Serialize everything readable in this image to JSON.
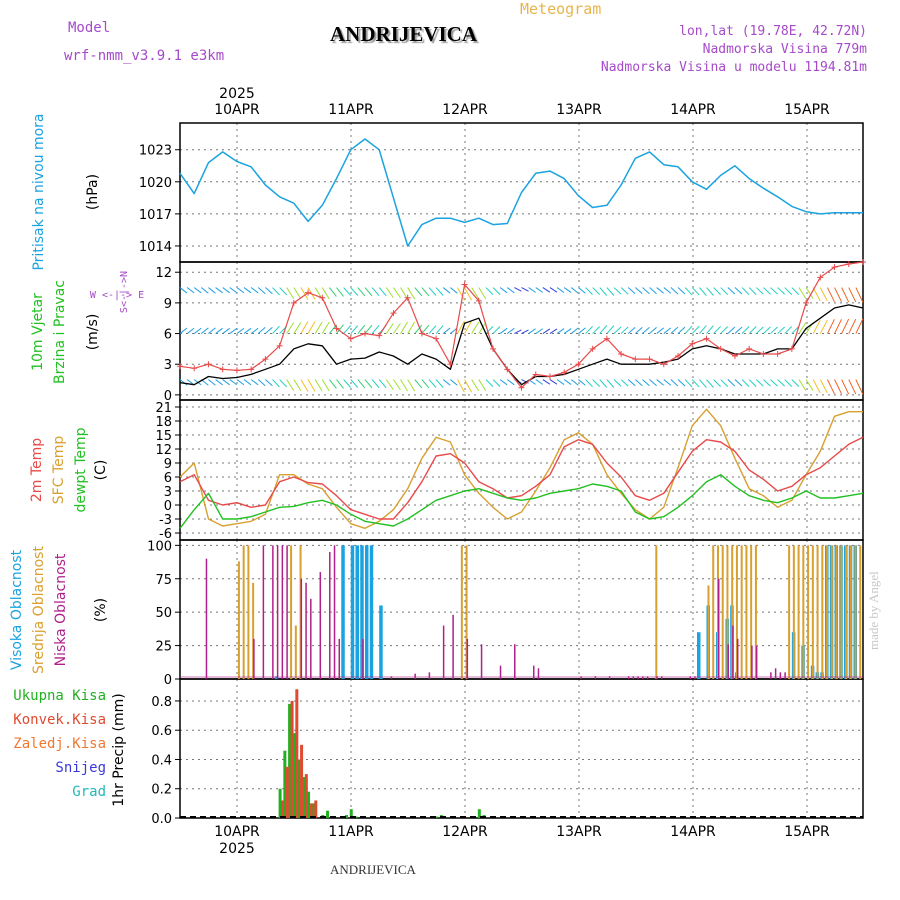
{
  "header": {
    "title": "ANDRIJEVICA",
    "meteogram_label": "Meteogram",
    "model_label": "Model",
    "model_name": "wrf-nmm_v3.9.1 e3km",
    "lonlat": "lon,lat (19.78E, 42.72N)",
    "altitude": "Nadmorska Visina 779m",
    "model_altitude": "Nadmorska Visina u modelu 1194.81m",
    "bottom_name": "ANDRIJEVICA",
    "made_by": "made by Angel"
  },
  "colors": {
    "pressure": "#1aa3e0",
    "wind_speed": "#e84a4a",
    "wind_mean": "#000000",
    "temp_2m": "#e84a4a",
    "temp_sfc": "#d8a030",
    "dewpt": "#22c022",
    "cloud_high": "#1aa3e0",
    "cloud_mid": "#d8a030",
    "cloud_low": "#b0208a",
    "precip_total": "#22b022",
    "precip_conv": "#e04a30",
    "precip_frozen": "#f07830",
    "snow": "#3a3ad8",
    "grad": "#22b8b8"
  },
  "chart_data": [
    {
      "type": "line",
      "id": "pressure",
      "ylabel_lines": [
        "Pritisak na nivou mora",
        "(hPa)"
      ],
      "yticks": [
        1014,
        1017,
        1020,
        1023
      ],
      "ylim": [
        1012.5,
        1025.5
      ],
      "xlim": [
        0,
        144
      ],
      "x_date_ticks": [
        "10APR",
        "11APR",
        "12APR",
        "13APR",
        "14APR",
        "15APR"
      ],
      "year_label": "2025",
      "x": [
        0,
        3,
        6,
        9,
        12,
        15,
        18,
        21,
        24,
        27,
        30,
        33,
        36,
        39,
        42,
        45,
        48,
        51,
        54,
        57,
        60,
        63,
        66,
        69,
        72,
        75,
        78,
        81,
        84,
        87,
        90,
        93,
        96,
        99,
        102,
        105,
        108,
        111,
        114,
        117,
        120,
        123,
        126,
        129,
        132,
        135,
        138,
        141,
        144
      ],
      "values": [
        1020.8,
        1018.9,
        1021.8,
        1022.8,
        1021.9,
        1021.4,
        1019.7,
        1018.6,
        1018.0,
        1016.3,
        1017.8,
        1020.3,
        1023.0,
        1024.0,
        1023.0,
        1018.5,
        1014.0,
        1016.0,
        1016.6,
        1016.6,
        1016.2,
        1016.6,
        1016.0,
        1016.1,
        1019.0,
        1020.8,
        1021.0,
        1020.3,
        1018.7,
        1017.6,
        1017.8,
        1019.7,
        1022.2,
        1022.8,
        1021.6,
        1021.4,
        1020.0,
        1019.3,
        1020.6,
        1021.5,
        1020.3,
        1019.4,
        1018.6,
        1017.7,
        1017.2,
        1017.0,
        1017.1,
        1017.1,
        1017.1
      ]
    },
    {
      "type": "line",
      "id": "wind",
      "ylabel_lines": [
        "10m Vjetar",
        "Brzina i Pravac",
        "(m/s)"
      ],
      "direction_legend": "W <-|-> E  S<-|->N",
      "yticks": [
        0,
        3,
        6,
        9,
        12
      ],
      "ylim": [
        -0.5,
        13
      ],
      "xlim": [
        0,
        144
      ],
      "series": [
        {
          "name": "wind speed (gust)",
          "x": [
            0,
            3,
            6,
            9,
            12,
            15,
            18,
            21,
            24,
            27,
            30,
            33,
            36,
            39,
            42,
            45,
            48,
            51,
            54,
            57,
            60,
            63,
            66,
            69,
            72,
            75,
            78,
            81,
            84,
            87,
            90,
            93,
            96,
            99,
            102,
            105,
            108,
            111,
            114,
            117,
            120,
            123,
            126,
            129,
            132,
            135,
            138,
            141,
            144
          ],
          "values": [
            2.8,
            2.6,
            3.0,
            2.5,
            2.4,
            2.5,
            3.5,
            4.8,
            9.0,
            10.0,
            9.5,
            6.5,
            5.5,
            6.0,
            5.8,
            8.0,
            9.5,
            6.0,
            5.5,
            3.0,
            10.8,
            9.2,
            4.5,
            2.5,
            0.7,
            2.0,
            1.8,
            2.2,
            3.0,
            4.5,
            5.5,
            4.0,
            3.5,
            3.5,
            3.0,
            3.8,
            5.0,
            5.5,
            4.5,
            3.8,
            4.5,
            4.0,
            4.0,
            4.5,
            9.0,
            11.5,
            12.5,
            12.8,
            13.0
          ]
        },
        {
          "name": "wind speed (mean)",
          "x": [
            0,
            3,
            6,
            9,
            12,
            15,
            18,
            21,
            24,
            27,
            30,
            33,
            36,
            39,
            42,
            45,
            48,
            51,
            54,
            57,
            60,
            63,
            66,
            69,
            72,
            75,
            78,
            81,
            84,
            87,
            90,
            93,
            96,
            99,
            102,
            105,
            108,
            111,
            114,
            117,
            120,
            123,
            126,
            129,
            132,
            135,
            138,
            141,
            144
          ],
          "values": [
            1.2,
            1.0,
            1.8,
            1.6,
            1.7,
            2.0,
            2.5,
            3.0,
            4.5,
            5.0,
            4.8,
            3.0,
            3.5,
            3.6,
            4.2,
            3.8,
            3.0,
            4.0,
            3.5,
            2.5,
            7.0,
            7.5,
            4.5,
            2.5,
            1.0,
            1.8,
            1.8,
            2.0,
            2.5,
            3.0,
            3.5,
            3.0,
            3.0,
            3.0,
            3.2,
            3.5,
            4.5,
            4.8,
            4.5,
            4.0,
            4.0,
            4.0,
            4.5,
            4.5,
            6.5,
            7.5,
            8.5,
            8.8,
            8.5
          ]
        }
      ]
    },
    {
      "type": "line",
      "id": "temperature",
      "ylabel_lines": [
        "2m Temp",
        "SFC Temp",
        "dewpt Temp",
        "(C)"
      ],
      "yticks": [
        -6,
        -3,
        0,
        3,
        6,
        9,
        12,
        15,
        18,
        21
      ],
      "ylim": [
        -7.5,
        22.5
      ],
      "xlim": [
        0,
        144
      ],
      "series": [
        {
          "name": "2m Temp",
          "x": [
            0,
            3,
            6,
            9,
            12,
            15,
            18,
            21,
            24,
            27,
            30,
            33,
            36,
            39,
            42,
            45,
            48,
            51,
            54,
            57,
            60,
            63,
            66,
            69,
            72,
            75,
            78,
            81,
            84,
            87,
            90,
            93,
            96,
            99,
            102,
            105,
            108,
            111,
            114,
            117,
            120,
            123,
            126,
            129,
            132,
            135,
            138,
            141,
            144
          ],
          "values": [
            5.0,
            6.5,
            1.0,
            0.0,
            0.5,
            -0.5,
            0.0,
            5.0,
            6.0,
            4.8,
            4.5,
            2.0,
            -1.0,
            -2.0,
            -3.0,
            -3.0,
            0.5,
            5.0,
            10.5,
            11.0,
            9.0,
            5.0,
            3.5,
            1.5,
            2.0,
            4.0,
            6.5,
            12.5,
            14.0,
            13.0,
            9.0,
            6.0,
            2.0,
            1.0,
            2.5,
            7.0,
            11.5,
            14.0,
            13.5,
            11.5,
            7.5,
            5.5,
            3.0,
            4.0,
            6.5,
            8.0,
            10.5,
            13.0,
            14.5
          ]
        },
        {
          "name": "SFC Temp",
          "x": [
            0,
            3,
            6,
            9,
            12,
            15,
            18,
            21,
            24,
            27,
            30,
            33,
            36,
            39,
            42,
            45,
            48,
            51,
            54,
            57,
            60,
            63,
            66,
            69,
            72,
            75,
            78,
            81,
            84,
            87,
            90,
            93,
            96,
            99,
            102,
            105,
            108,
            111,
            114,
            117,
            120,
            123,
            126,
            129,
            132,
            135,
            138,
            141,
            144
          ],
          "values": [
            6.0,
            9.0,
            -3.0,
            -4.5,
            -4.0,
            -3.5,
            -2.0,
            6.5,
            6.5,
            4.5,
            3.5,
            -0.5,
            -4.0,
            -5.0,
            -3.5,
            -1.0,
            3.5,
            10.0,
            14.5,
            13.5,
            6.5,
            2.5,
            -0.5,
            -3.0,
            -1.5,
            3.0,
            8.0,
            14.0,
            15.5,
            13.0,
            6.5,
            2.5,
            -1.0,
            -3.0,
            -0.5,
            8.0,
            17.0,
            20.5,
            17.0,
            10.0,
            3.5,
            2.0,
            -0.5,
            1.0,
            6.5,
            11.5,
            19.0,
            20.0,
            20.0
          ]
        },
        {
          "name": "dewpt Temp",
          "x": [
            0,
            3,
            6,
            9,
            12,
            15,
            18,
            21,
            24,
            27,
            30,
            33,
            36,
            39,
            42,
            45,
            48,
            51,
            54,
            57,
            60,
            63,
            66,
            69,
            72,
            75,
            78,
            81,
            84,
            87,
            90,
            93,
            96,
            99,
            102,
            105,
            108,
            111,
            114,
            117,
            120,
            123,
            126,
            129,
            132,
            135,
            138,
            141,
            144
          ],
          "values": [
            -5.0,
            -1.0,
            2.5,
            -3.0,
            -3.0,
            -2.5,
            -1.5,
            -0.5,
            -0.3,
            0.5,
            1.0,
            0.0,
            -2.0,
            -3.5,
            -4.0,
            -4.5,
            -3.0,
            -1.0,
            1.0,
            2.0,
            3.0,
            3.5,
            2.5,
            1.5,
            1.0,
            1.5,
            2.5,
            3.0,
            3.5,
            4.5,
            4.0,
            3.0,
            -1.5,
            -3.0,
            -2.5,
            -0.5,
            2.0,
            5.0,
            6.5,
            4.0,
            2.0,
            1.0,
            0.5,
            1.5,
            3.0,
            1.5,
            1.5,
            2.0,
            2.5
          ]
        }
      ]
    },
    {
      "type": "bar",
      "id": "clouds",
      "ylabel_lines": [
        "Visoka Oblacnost",
        "Srednja Oblacnost",
        "Niska Oblacnost",
        "(%)"
      ],
      "yticks": [
        0,
        25,
        50,
        75,
        100
      ],
      "ylim": [
        0,
        104
      ],
      "xlim": [
        0,
        144
      ],
      "series": [
        {
          "name": "Visoka Oblacnost",
          "x": [
            20,
            34,
            36,
            37,
            38,
            39,
            40,
            42,
            109,
            111,
            113,
            115,
            116,
            117,
            129,
            131,
            133,
            134,
            135,
            136,
            137,
            138,
            139,
            140,
            141,
            142
          ],
          "values": [
            2,
            100,
            100,
            100,
            100,
            100,
            100,
            55,
            35,
            55,
            35,
            45,
            55,
            5,
            35,
            25,
            10,
            5,
            5,
            100,
            100,
            100,
            100,
            100,
            100,
            100
          ]
        },
        {
          "name": "Srednja Oblacnost",
          "x": [
            12,
            13,
            14,
            15,
            23,
            24,
            25,
            59,
            60,
            100,
            111,
            112,
            113,
            114,
            115,
            116,
            117,
            118,
            119,
            120,
            121,
            128,
            129,
            130,
            131,
            132,
            133,
            134,
            135,
            136,
            137,
            138,
            139,
            140,
            141,
            142,
            143
          ],
          "values": [
            88,
            100,
            100,
            72,
            100,
            40,
            100,
            100,
            100,
            100,
            70,
            100,
            100,
            100,
            100,
            100,
            100,
            100,
            100,
            100,
            100,
            100,
            100,
            100,
            100,
            100,
            100,
            100,
            100,
            100,
            100,
            100,
            100,
            100,
            100,
            100,
            100
          ]
        },
        {
          "name": "Niska Oblacnost",
          "x": [
            5,
            15,
            17,
            19,
            20,
            21,
            22,
            25,
            26,
            27,
            29,
            31,
            32,
            33,
            38,
            44,
            49,
            52,
            55,
            57,
            60,
            63,
            67,
            70,
            74,
            75,
            84,
            87,
            90,
            94,
            95,
            96,
            97,
            98,
            100,
            101,
            107,
            108,
            113,
            115,
            116,
            117,
            120,
            121,
            124,
            125,
            126,
            127
          ],
          "values": [
            90,
            30,
            100,
            100,
            100,
            100,
            100,
            75,
            72,
            60,
            80,
            95,
            100,
            30,
            30,
            2,
            4,
            5,
            40,
            48,
            30,
            26,
            10,
            26,
            10,
            8,
            2,
            2,
            2,
            2,
            2,
            2,
            2,
            2,
            2,
            2,
            2,
            2,
            75,
            26,
            40,
            30,
            25,
            25,
            5,
            8,
            5,
            5
          ]
        }
      ]
    },
    {
      "type": "bar",
      "id": "precip",
      "ylabel_lines": [
        "1hr Precip (mm)"
      ],
      "legend": [
        "Ukupna Kisa",
        "Konvek.Kisa",
        "Zaledj.Kisa",
        "Snijeg",
        "Grad"
      ],
      "yticks": [
        0.0,
        0.2,
        0.4,
        0.6,
        0.8
      ],
      "ylim": [
        0,
        0.95
      ],
      "xlim": [
        0,
        144
      ],
      "series": [
        {
          "name": "Ukupna Kisa",
          "x": [
            21,
            22,
            23,
            24,
            25,
            26,
            27,
            28,
            30,
            31,
            32,
            35,
            36,
            37,
            54,
            55,
            62,
            63,
            64
          ],
          "values": [
            0.2,
            0.46,
            0.78,
            0.58,
            0.4,
            0.28,
            0.18,
            0.1,
            0.02,
            0.05,
            0.01,
            0.02,
            0.06,
            0.01,
            0.01,
            0.02,
            0.01,
            0.06,
            0.02
          ]
        },
        {
          "name": "Konvek.Kisa",
          "x": [
            21,
            22,
            23,
            24,
            25,
            26,
            27,
            28
          ],
          "values": [
            0.12,
            0.35,
            0.8,
            0.88,
            0.5,
            0.3,
            0.1,
            0.12
          ]
        }
      ]
    }
  ]
}
